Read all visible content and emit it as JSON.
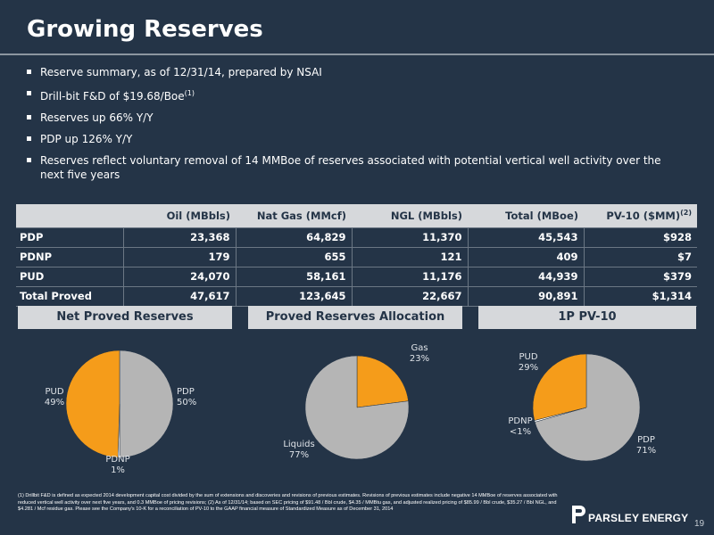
{
  "title": "Growing Reserves",
  "bullets": [
    {
      "text": "Reserve summary, as of 12/31/14, prepared by NSAI",
      "sup": ""
    },
    {
      "text": "Drill-bit F&D of $19.68/Boe",
      "sup": "(1)"
    },
    {
      "text": "Reserves up 66% Y/Y",
      "sup": ""
    },
    {
      "text": "PDP up 126% Y/Y",
      "sup": ""
    },
    {
      "text": "Reserves reflect voluntary removal of 14 MMBoe of reserves associated with potential vertical well activity over the next five years",
      "sup": ""
    }
  ],
  "table": {
    "headers": [
      "",
      "Oil (MBbls)",
      "Nat Gas (MMcf)",
      "NGL (MBbls)",
      "Total (MBoe)",
      "PV-10 ($MM)"
    ],
    "pv10_sup": "(2)",
    "rows": [
      [
        "PDP",
        "23,368",
        "64,829",
        "11,370",
        "45,543",
        "$928"
      ],
      [
        "PDNP",
        "179",
        "655",
        "121",
        "409",
        "$7"
      ],
      [
        "PUD",
        "24,070",
        "58,161",
        "11,176",
        "44,939",
        "$379"
      ],
      [
        "Total Proved",
        "47,617",
        "123,645",
        "22,667",
        "90,891",
        "$1,314"
      ]
    ]
  },
  "charts_headers": [
    "Net Proved Reserves",
    "Proved Reserves Allocation",
    "1P PV-10"
  ],
  "chart_data": [
    {
      "type": "pie",
      "title": "Net Proved Reserves",
      "slices": [
        {
          "label": "PDP",
          "pct_label": "50%",
          "value": 50,
          "color": "#b5b5b5"
        },
        {
          "label": "PDNP",
          "pct_label": "1%",
          "value": 0.5,
          "color": "#ffffff"
        },
        {
          "label": "PUD",
          "pct_label": "49%",
          "value": 49.5,
          "color": "#f59c1a"
        }
      ]
    },
    {
      "type": "pie",
      "title": "Proved Reserves Allocation",
      "slices": [
        {
          "label": "Gas",
          "pct_label": "23%",
          "value": 23,
          "color": "#f59c1a"
        },
        {
          "label": "Liquids",
          "pct_label": "77%",
          "value": 77,
          "color": "#b5b5b5"
        }
      ]
    },
    {
      "type": "pie",
      "title": "1P PV-10",
      "slices": [
        {
          "label": "PDP",
          "pct_label": "71%",
          "value": 70.6,
          "color": "#b5b5b5"
        },
        {
          "label": "PDNP",
          "pct_label": "<1%",
          "value": 0.5,
          "color": "#ffffff"
        },
        {
          "label": "PUD",
          "pct_label": "29%",
          "value": 28.9,
          "color": "#f59c1a"
        }
      ]
    }
  ],
  "footnote": "(1) Drillbit F&D is defined as expected 2014 development capital cost divided by the sum of extensions and discoveries and revisions of previous estimates. Revisions of previous estimates include negative  14 MMBoe of reserves associated with reduced vertical well activity over next five years, and 0.3 MMBoe of pricing revisions; (2) As of 12/31/14; based on SEC pricing of $91.48 / Bbl crude, $4.35 / MMBtu gas, and adjusted realized pricing of $85.99 / Bbl crude, $35.27 / Bbl NGL, and $4.281 / Mcf residue gas. Please see the Company's 10-K for a reconciliation of PV-10 to the GAAP financial measure of Standardized Measure as of December 31, 2014",
  "logo_text": "PARSLEY ENERGY",
  "page_number": "19",
  "colors": {
    "background": "#243447",
    "orange": "#f59c1a",
    "gray": "#b5b5b5",
    "header": "#d6d8db"
  }
}
